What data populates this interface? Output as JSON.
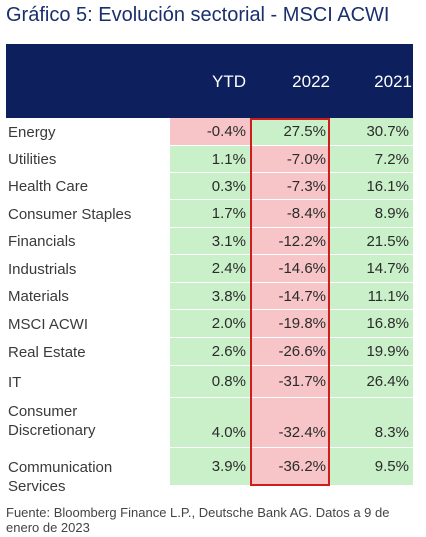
{
  "title": "Gráfico 5: Evolución sectorial - MSCI ACWI",
  "source": "Fuente: Bloomberg Finance L.P., Deutsche Bank AG. Datos a 9 de enero de 2023",
  "colors": {
    "header": "#0d1f5c",
    "positive_cell": "#c9f0c9",
    "negative_cell": "#f7c5c8",
    "highlight_border": "#d01c1c"
  },
  "chart_data": {
    "type": "table",
    "title": "Gráfico 5: Evolución sectorial - MSCI ACWI",
    "columns": [
      "YTD",
      "2022",
      "2021"
    ],
    "highlighted_column": "2022",
    "rows": [
      {
        "label": "Energy",
        "values": [
          "-0.4%",
          "27.5%",
          "30.7%"
        ]
      },
      {
        "label": "Utilities",
        "values": [
          "1.1%",
          "-7.0%",
          "7.2%"
        ]
      },
      {
        "label": "Health Care",
        "values": [
          "0.3%",
          "-7.3%",
          "16.1%"
        ]
      },
      {
        "label": "Consumer Staples",
        "values": [
          "1.7%",
          "-8.4%",
          "8.9%"
        ]
      },
      {
        "label": "Financials",
        "values": [
          "3.1%",
          "-12.2%",
          "21.5%"
        ]
      },
      {
        "label": "Industrials",
        "values": [
          "2.4%",
          "-14.6%",
          "14.7%"
        ]
      },
      {
        "label": "Materials",
        "values": [
          "3.8%",
          "-14.7%",
          "11.1%"
        ]
      },
      {
        "label": "MSCI ACWI",
        "values": [
          "2.0%",
          "-19.8%",
          "16.8%"
        ]
      },
      {
        "label": "Real Estate",
        "values": [
          "2.6%",
          "-26.6%",
          "19.9%"
        ]
      },
      {
        "label": "IT",
        "values": [
          "0.8%",
          "-31.7%",
          "26.4%"
        ]
      },
      {
        "label": "Consumer Discretionary",
        "values": [
          "4.0%",
          "-32.4%",
          "8.3%"
        ]
      },
      {
        "label": "Communication Services",
        "values": [
          "3.9%",
          "-36.2%",
          "9.5%"
        ]
      }
    ]
  }
}
